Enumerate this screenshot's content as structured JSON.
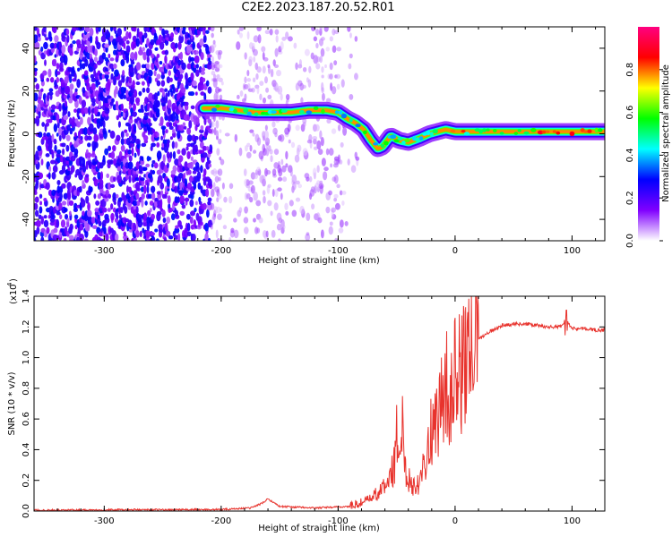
{
  "title": "C2E2.2023.187.20.52.R01",
  "chart_data": [
    {
      "type": "heatmap",
      "name": "spectrogram",
      "xlabel": "Height of straight line (km)",
      "ylabel": "Frequency (Hz)",
      "xlim": [
        -360,
        128
      ],
      "ylim": [
        -50,
        50
      ],
      "xticks": [
        -300,
        -200,
        -100,
        0,
        100
      ],
      "yticks": [
        -40,
        -20,
        0,
        20,
        40
      ],
      "colorbar": {
        "label": "Normalized spectral amplitude",
        "range": [
          0.0,
          1.0
        ],
        "ticks": [
          "0.0",
          "0.2",
          "0.4",
          "0.6",
          "0.8"
        ],
        "colors": [
          "#ffffff",
          "#8000ff",
          "#0000ff",
          "#00ffff",
          "#00ff00",
          "#ffff00",
          "#ff0000",
          "#ff0080"
        ]
      },
      "signal_track": {
        "x": [
          -215,
          -200,
          -185,
          -170,
          -155,
          -140,
          -125,
          -110,
          -100,
          -92,
          -85,
          -78,
          -72,
          -66,
          -62,
          -55,
          -48,
          -40,
          -30,
          -22,
          -15,
          -8,
          0,
          20,
          40,
          60,
          80,
          100,
          128
        ],
        "y": [
          12,
          12,
          11,
          10,
          10,
          10,
          11,
          11,
          10,
          7,
          5,
          2,
          -3,
          -7,
          -6,
          -1,
          -3,
          -4,
          -2,
          0,
          1,
          2,
          1,
          1,
          1,
          1,
          1,
          1,
          1
        ]
      }
    },
    {
      "type": "line",
      "name": "snr",
      "xlabel": "Height of straight line (km)",
      "ylabel": "SNR (10 * v/v)",
      "multiplier_label": "(x10",
      "multiplier_exponent": "4",
      "xlim": [
        -360,
        128
      ],
      "ylim": [
        0.0,
        1.4
      ],
      "xticks": [
        -300,
        -200,
        -100,
        0,
        100
      ],
      "yticks": [
        "0.0",
        "0.2",
        "0.4",
        "0.6",
        "0.8",
        "1.0",
        "1.2",
        "1.4"
      ],
      "color": "#e8332d",
      "series": [
        {
          "x": [
            -360,
            -300,
            -250,
            -200,
            -175,
            -165,
            -160,
            -150,
            -120,
            -90,
            -75,
            -65,
            -58,
            -52,
            -50,
            -47,
            -45,
            -42,
            -38,
            -34,
            -30,
            -26,
            -22,
            -18,
            -15,
            -12,
            -8,
            -5,
            0,
            5,
            10,
            15,
            20,
            30,
            40,
            50,
            60,
            70,
            80,
            90,
            95,
            100,
            110,
            120,
            128
          ],
          "y": [
            0.005,
            0.008,
            0.008,
            0.01,
            0.02,
            0.05,
            0.08,
            0.03,
            0.02,
            0.03,
            0.07,
            0.12,
            0.18,
            0.3,
            0.48,
            0.4,
            0.55,
            0.25,
            0.2,
            0.15,
            0.22,
            0.35,
            0.45,
            0.62,
            0.55,
            0.72,
            0.85,
            0.7,
            0.9,
            0.88,
            1.02,
            1.1,
            1.12,
            1.17,
            1.21,
            1.22,
            1.22,
            1.21,
            1.2,
            1.2,
            1.25,
            1.19,
            1.19,
            1.18,
            1.18
          ]
        }
      ]
    }
  ]
}
